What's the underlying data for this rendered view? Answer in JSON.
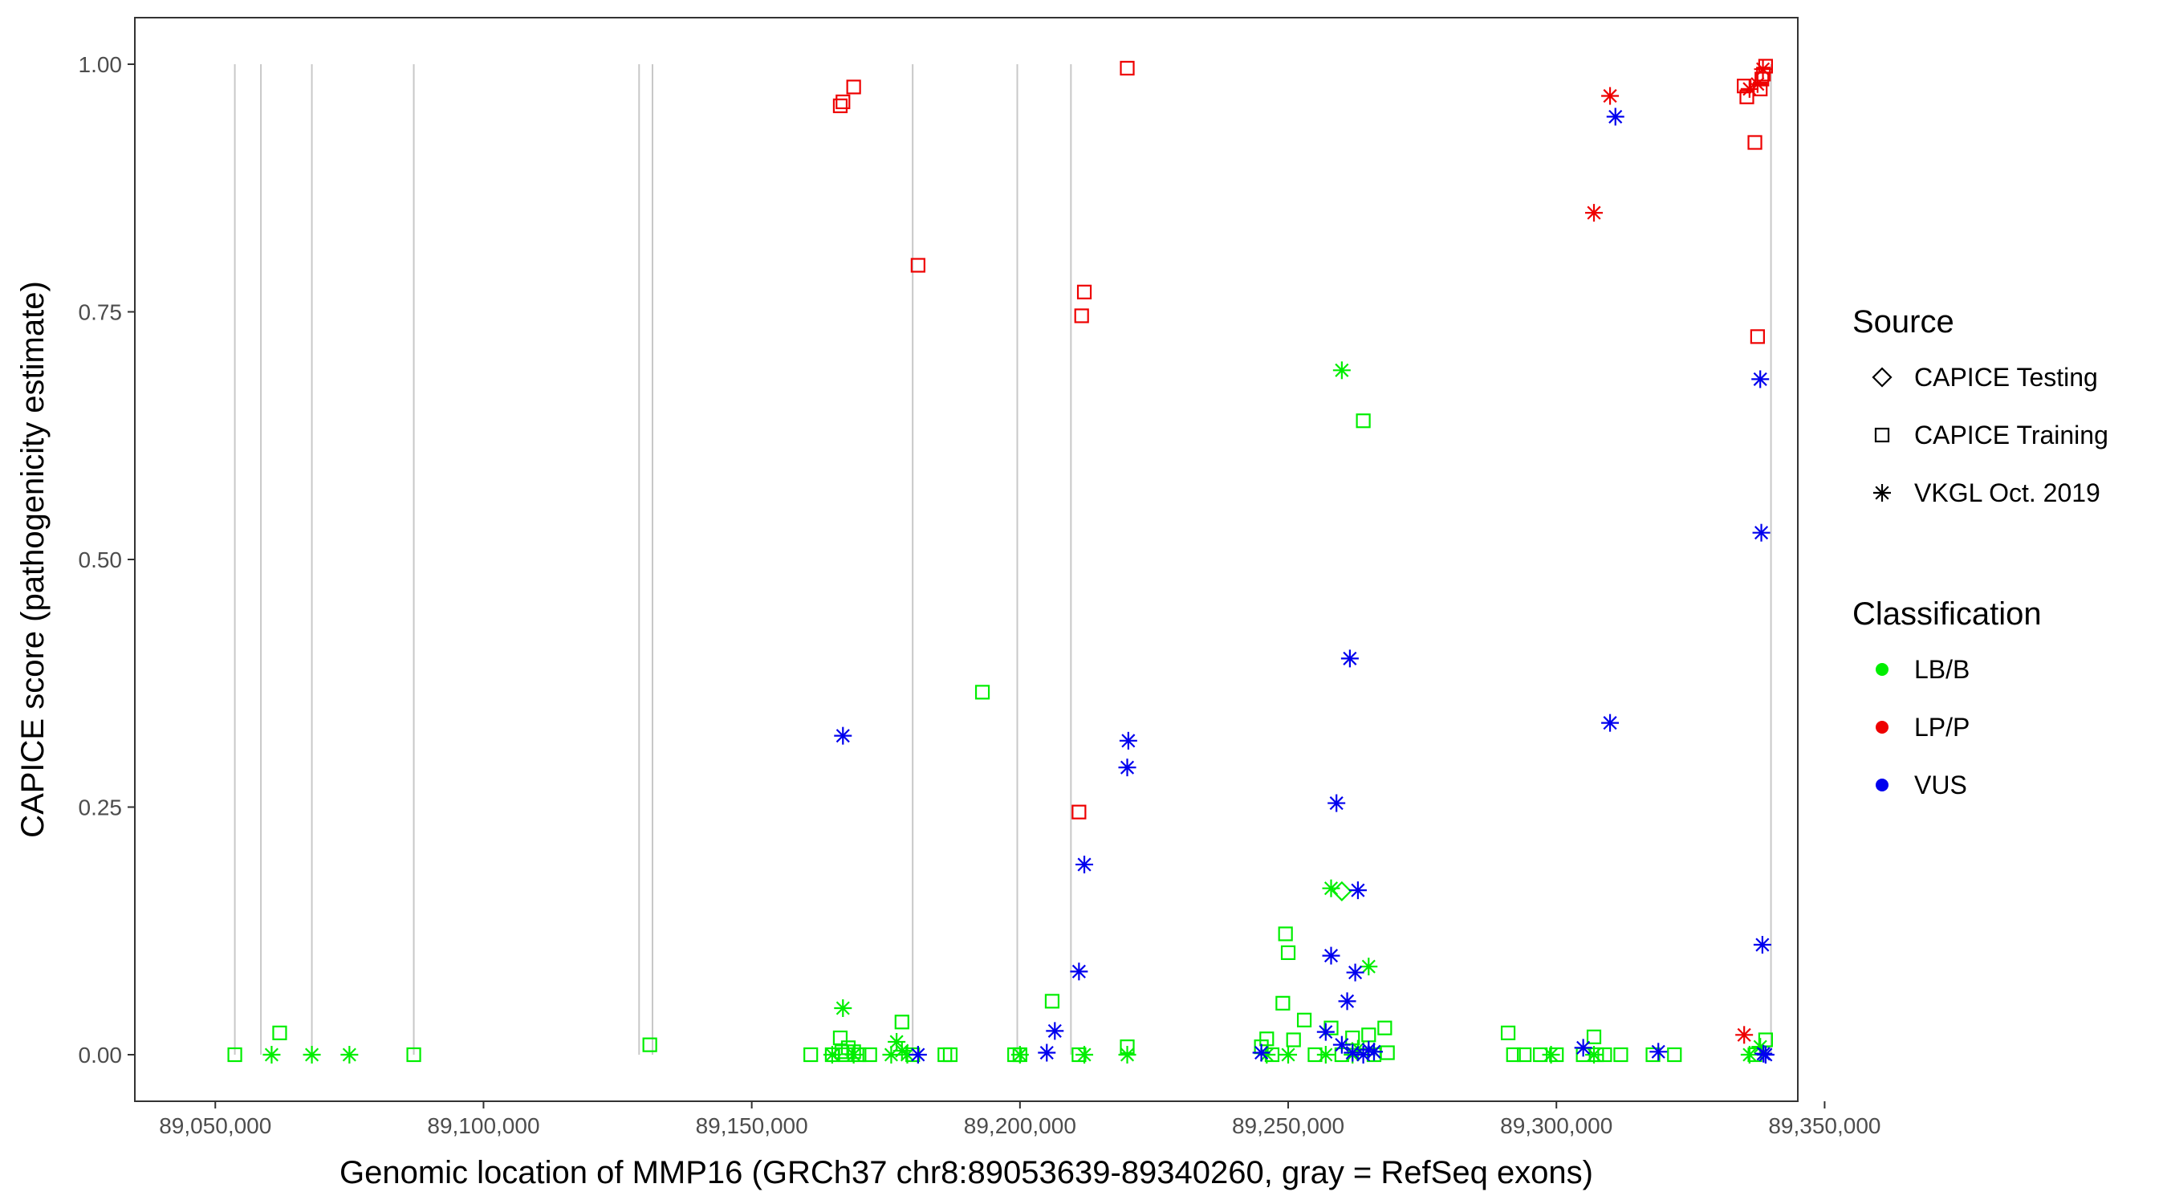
{
  "chart_data": {
    "type": "scatter",
    "xlabel": "Genomic location of MMP16 (GRCh37 chr8:89053639-89340260, gray = RefSeq exons)",
    "ylabel": "CAPICE score (pathogenicity estimate)",
    "xlim": [
      89035000,
      89345000
    ],
    "ylim": [
      -0.047,
      1.047
    ],
    "x_ticks": [
      89050000,
      89100000,
      89150000,
      89200000,
      89250000,
      89300000,
      89350000
    ],
    "x_tick_labels": [
      "89,050,000",
      "89,100,000",
      "89,150,000",
      "89,200,000",
      "89,250,000",
      "89,300,000",
      "89,350,000"
    ],
    "y_ticks": [
      0,
      0.25,
      0.5,
      0.75,
      1.0
    ],
    "y_tick_labels": [
      "0.00",
      "0.25",
      "0.50",
      "0.75",
      "1.00"
    ],
    "grid": false,
    "exons": [
      89053639,
      89058500,
      89068000,
      89087000,
      89129000,
      89131500,
      89180000,
      89199500,
      89209500,
      89340000
    ],
    "legend": {
      "placement": "right",
      "source_title": "Source",
      "source_entries": [
        {
          "label": "CAPICE Testing",
          "shape": "diamond"
        },
        {
          "label": "CAPICE Training",
          "shape": "square"
        },
        {
          "label": "VKGL Oct. 2019",
          "shape": "asterisk"
        }
      ],
      "class_title": "Classification",
      "class_entries": [
        {
          "label": "LB/B",
          "color": "#00ee00"
        },
        {
          "label": "LP/P",
          "color": "#ee0000"
        },
        {
          "label": "VUS",
          "color": "#0000ee"
        }
      ]
    },
    "series": [
      {
        "classification": "LB/B",
        "source": "CAPICE Training",
        "shape": "square",
        "color": "#00ee00",
        "x": [
          89053639,
          89062000,
          89087000,
          89131000,
          89161000,
          89165000,
          89166500,
          89166800,
          89167500,
          89168000,
          89169000,
          89170000,
          89172000,
          89178000,
          89180000,
          89186000,
          89187000,
          89193000,
          89199000,
          89200000,
          89206000,
          89211000,
          89220000,
          89245000,
          89246000,
          89247000,
          89249000,
          89249500,
          89250000,
          89251000,
          89253000,
          89255000,
          89258000,
          89260000,
          89262000,
          89264000,
          89265000,
          89266000,
          89268000,
          89268500,
          89291000,
          89292000,
          89294000,
          89297000,
          89300000,
          89305000,
          89307000,
          89307500,
          89309000,
          89312000,
          89318000,
          89322000,
          89337000,
          89339000
        ],
        "y": [
          0.0,
          0.022,
          0.0,
          0.01,
          0.0,
          0.0,
          0.017,
          0.003,
          0.0,
          0.007,
          0.003,
          0.0,
          0.0,
          0.033,
          0.0,
          0.0,
          0.0,
          0.366,
          0.0,
          0.0,
          0.054,
          0.0,
          0.008,
          0.008,
          0.016,
          0.0,
          0.052,
          0.122,
          0.103,
          0.015,
          0.035,
          0.0,
          0.027,
          0.0,
          0.017,
          0.64,
          0.02,
          0.0,
          0.027,
          0.002,
          0.022,
          0.0,
          0.0,
          0.0,
          0.0,
          0.0,
          0.018,
          0.0,
          0.0,
          0.0,
          0.0,
          0.0,
          0.0,
          0.015
        ]
      },
      {
        "classification": "LB/B",
        "source": "VKGL Oct. 2019",
        "shape": "asterisk",
        "color": "#00ee00",
        "x": [
          89060500,
          89068000,
          89075000,
          89165000,
          89167000,
          89169000,
          89176000,
          89177000,
          89178000,
          89179000,
          89200000,
          89212000,
          89220000,
          89246000,
          89250000,
          89257000,
          89258000,
          89260000,
          89262000,
          89263000,
          89265000,
          89266000,
          89299000,
          89307000,
          89336000,
          89338000
        ],
        "y": [
          0.0,
          0.0,
          0.0,
          0.0,
          0.047,
          0.0,
          0.0,
          0.013,
          0.004,
          0.0,
          0.0,
          0.0,
          0.0,
          0.0,
          0.0,
          0.0,
          0.168,
          0.691,
          0.0,
          0.006,
          0.089,
          0.003,
          0.0,
          0.0,
          0.0,
          0.008
        ]
      },
      {
        "classification": "LB/B",
        "source": "CAPICE Testing",
        "shape": "diamond",
        "color": "#00ee00",
        "x": [
          89260000
        ],
        "y": [
          0.165
        ]
      },
      {
        "classification": "LP/P",
        "source": "CAPICE Training",
        "shape": "square",
        "color": "#ee0000",
        "x": [
          89166500,
          89167000,
          89169000,
          89181000,
          89211000,
          89211500,
          89212000,
          89220000,
          89335000,
          89335500,
          89337000,
          89337500,
          89338000,
          89338300,
          89338600,
          89339000
        ],
        "y": [
          0.958,
          0.962,
          0.977,
          0.797,
          0.245,
          0.746,
          0.77,
          0.996,
          0.978,
          0.967,
          0.921,
          0.725,
          0.975,
          0.985,
          0.99,
          0.998
        ]
      },
      {
        "classification": "LP/P",
        "source": "VKGL Oct. 2019",
        "shape": "asterisk",
        "color": "#ee0000",
        "x": [
          89307000,
          89310000,
          89335000,
          89336000,
          89337500,
          89338500
        ],
        "y": [
          0.85,
          0.968,
          0.02,
          0.975,
          0.98,
          0.995
        ]
      },
      {
        "classification": "VUS",
        "source": "VKGL Oct. 2019",
        "shape": "asterisk",
        "color": "#0000ee",
        "x": [
          89167000,
          89181000,
          89205000,
          89206500,
          89211000,
          89212000,
          89220000,
          89220200,
          89245000,
          89257000,
          89258000,
          89259000,
          89260000,
          89261000,
          89261500,
          89262000,
          89262500,
          89263000,
          89264000,
          89265000,
          89266000,
          89305000,
          89310000,
          89311000,
          89319000,
          89338000,
          89338200,
          89338400,
          89338600,
          89339000
        ],
        "y": [
          0.322,
          0.0,
          0.002,
          0.024,
          0.084,
          0.192,
          0.29,
          0.317,
          0.002,
          0.023,
          0.1,
          0.254,
          0.01,
          0.054,
          0.4,
          0.002,
          0.083,
          0.166,
          0.0,
          0.005,
          0.003,
          0.007,
          0.335,
          0.947,
          0.003,
          0.682,
          0.527,
          0.111,
          0.001,
          0.0
        ]
      }
    ]
  }
}
